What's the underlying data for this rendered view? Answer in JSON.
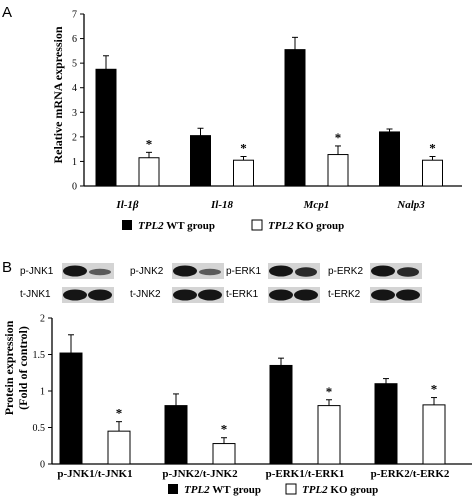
{
  "chart_data": [
    {
      "panel": "A",
      "type": "bar",
      "ylabel": "Relative mRNA expression",
      "ylim": [
        0,
        7
      ],
      "yticks": [
        0,
        1,
        2,
        3,
        4,
        5,
        6,
        7
      ],
      "categories": [
        "Il-1β",
        "Il-18",
        "Mcp1",
        "Nalp3"
      ],
      "series": [
        {
          "name": "TPL2 WT group",
          "color": "#000000",
          "values": [
            4.75,
            2.05,
            5.55,
            2.2
          ],
          "errors": [
            0.55,
            0.3,
            0.5,
            0.12
          ]
        },
        {
          "name": "TPL2 KO group",
          "color": "#ffffff",
          "values": [
            1.15,
            1.05,
            1.28,
            1.05
          ],
          "errors": [
            0.22,
            0.15,
            0.35,
            0.15
          ]
        }
      ],
      "significance": [
        "*",
        "*",
        "*",
        "*"
      ],
      "legend": {
        "wt_italic": "TPL2",
        "wt_rest": "WT  group",
        "ko_italic": "TPL2",
        "ko_rest": "KO  group"
      }
    },
    {
      "panel": "B",
      "type": "bar",
      "ylabel_line1": "Protein expression",
      "ylabel_line2": "(Fold of control)",
      "ylim": [
        0,
        2
      ],
      "yticks": [
        "0",
        "0.5",
        "1",
        "1.5",
        "2"
      ],
      "categories": [
        "p-JNK1/t-JNK1",
        "p-JNK2/t-JNK2",
        "p-ERK1/t-ERK1",
        "p-ERK2/t-ERK2"
      ],
      "series": [
        {
          "name": "TPL2 WT group",
          "color": "#000000",
          "values": [
            1.52,
            0.8,
            1.35,
            1.1
          ],
          "errors": [
            0.25,
            0.16,
            0.1,
            0.07
          ]
        },
        {
          "name": "TPL2 KO group",
          "color": "#ffffff",
          "values": [
            0.45,
            0.28,
            0.8,
            0.81
          ],
          "errors": [
            0.13,
            0.08,
            0.08,
            0.1
          ]
        }
      ],
      "significance": [
        "*",
        "*",
        "*",
        "*"
      ],
      "blots": [
        {
          "p": "p-JNK1",
          "t": "t-JNK1"
        },
        {
          "p": "p-JNK2",
          "t": "t-JNK2"
        },
        {
          "p": "p-ERK1",
          "t": "t-ERK1"
        },
        {
          "p": "p-ERK2",
          "t": "t-ERK2"
        }
      ],
      "legend": {
        "wt_italic": "TPL2",
        "wt_rest": "WT  group",
        "ko_italic": "TPL2",
        "ko_rest": "KO  group"
      }
    }
  ]
}
